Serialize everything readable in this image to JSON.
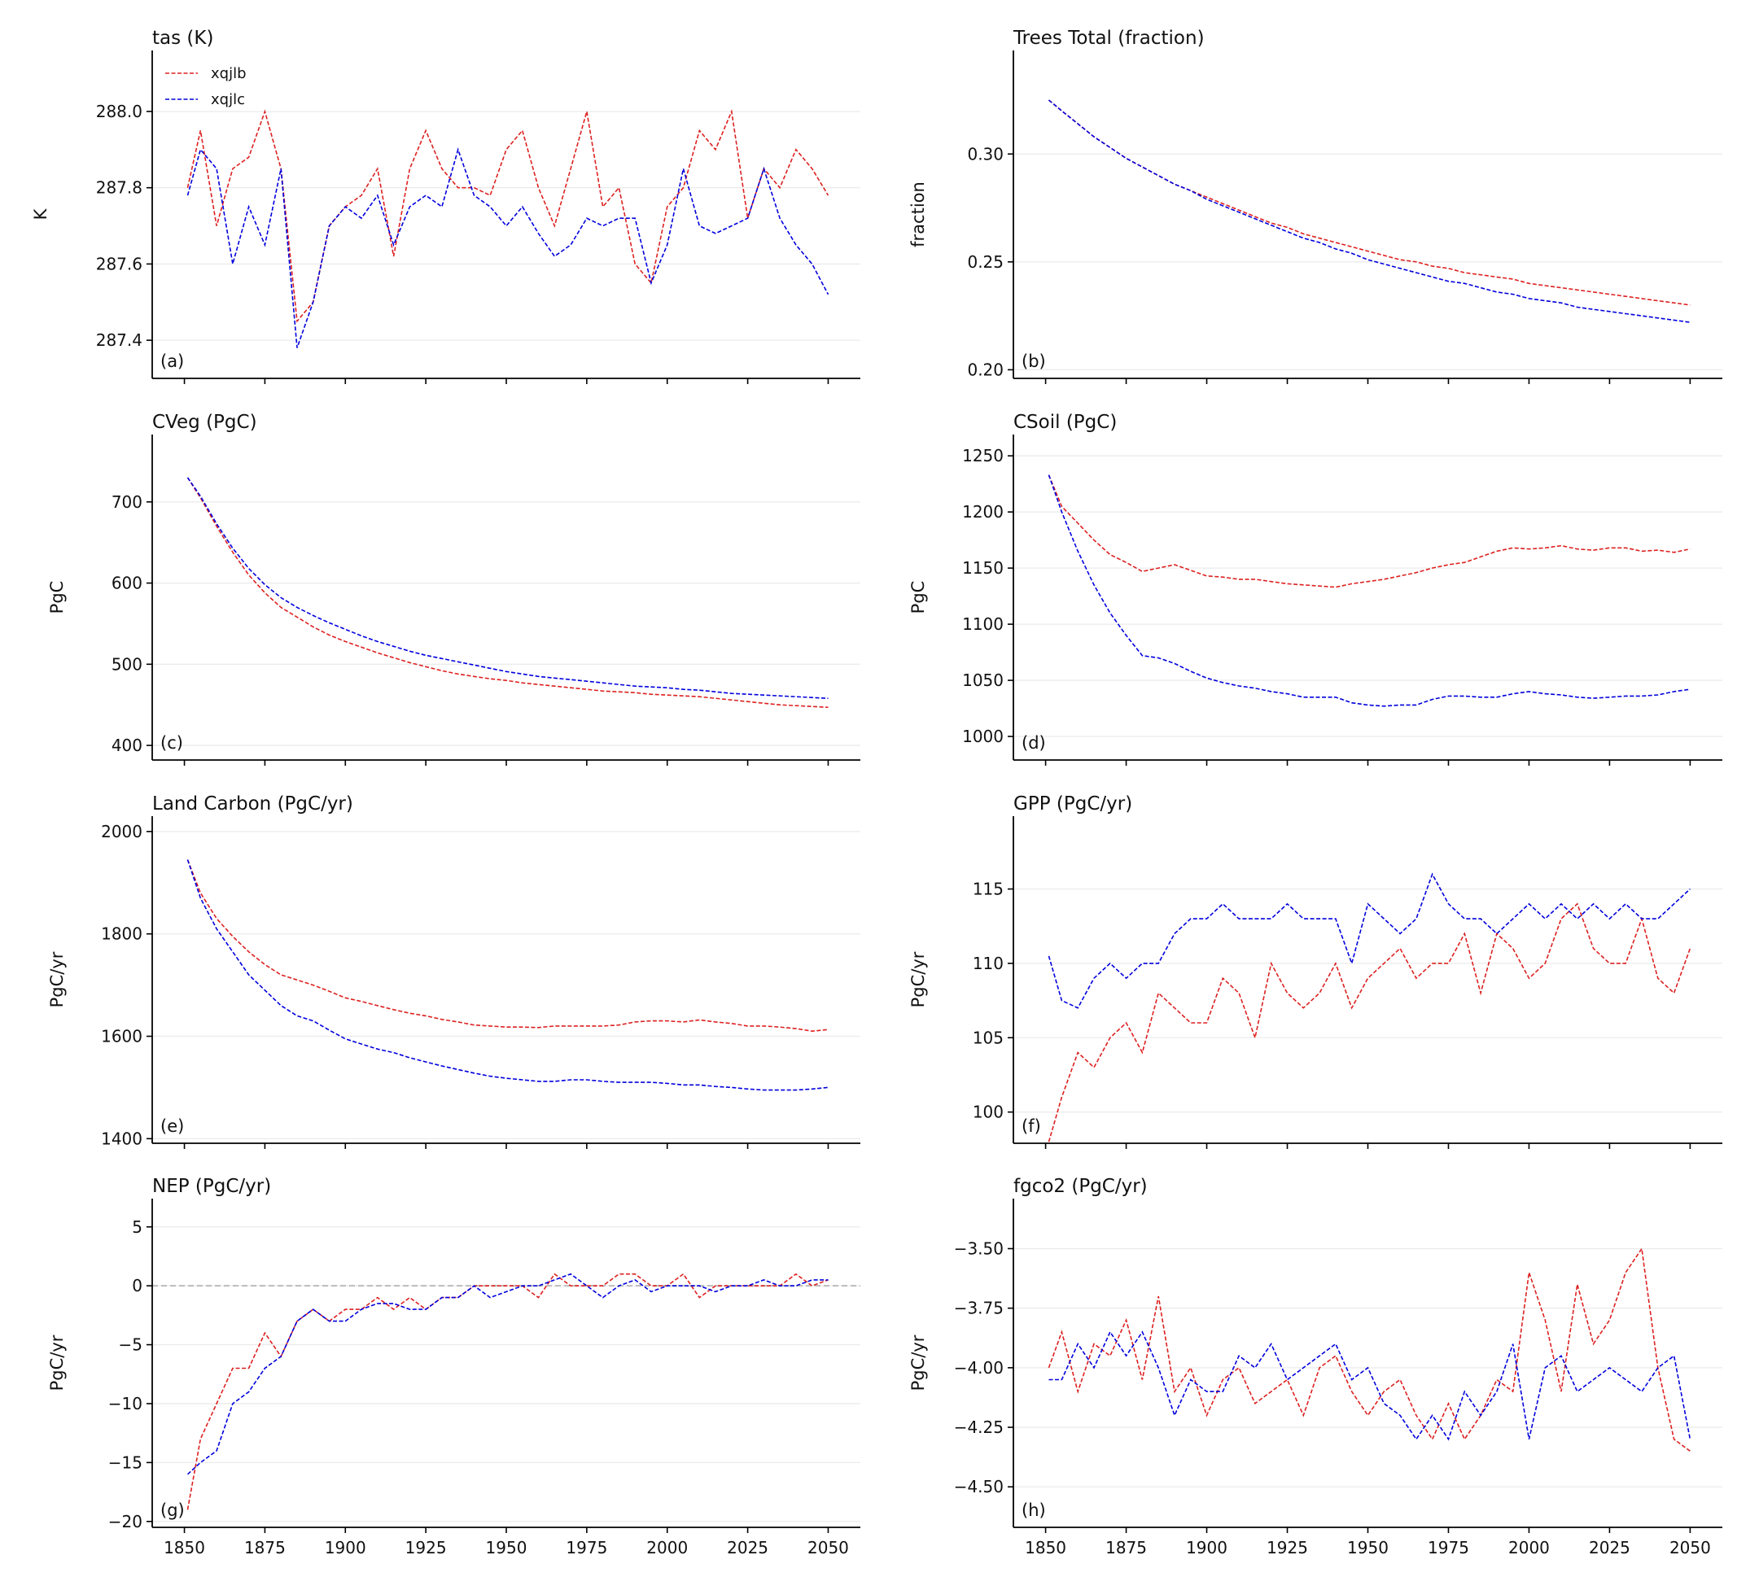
{
  "legend": {
    "placement": "upper-left",
    "panel": 0
  },
  "colors": {
    "xqjlb": "#dd2020",
    "xqjlc": "#0000dd",
    "grid": "#ebebeb",
    "zero_line": "#bbbbbb"
  },
  "x_years": [
    1851,
    1855,
    1860,
    1865,
    1870,
    1875,
    1880,
    1885,
    1890,
    1895,
    1900,
    1905,
    1910,
    1915,
    1920,
    1925,
    1930,
    1935,
    1940,
    1945,
    1950,
    1955,
    1960,
    1965,
    1970,
    1975,
    1980,
    1985,
    1990,
    1995,
    2000,
    2005,
    2010,
    2015,
    2020,
    2025,
    2030,
    2035,
    2040,
    2045,
    2050
  ],
  "x_ticks": [
    1850,
    1875,
    1900,
    1925,
    1950,
    1975,
    2000,
    2025,
    2050
  ],
  "x_tick_labels": [
    "1850",
    "1875",
    "1900",
    "1925",
    "1950",
    "1975",
    "2000",
    "2025",
    "2050"
  ],
  "xlim": [
    1840,
    2060
  ],
  "chart_data": [
    {
      "type": "line",
      "panel_label": "(a)",
      "title": "tas (K)",
      "ylabel": "K",
      "ylim": [
        287.3,
        288.16
      ],
      "yticks": [
        287.4,
        287.6,
        287.8,
        288.0
      ],
      "ytick_labels": [
        "287.4",
        "287.6",
        "287.8",
        "288.0"
      ],
      "grid": true,
      "series": [
        {
          "name": "xqjlb",
          "values": [
            287.8,
            287.95,
            287.7,
            287.85,
            287.88,
            288.0,
            287.85,
            287.45,
            287.5,
            287.7,
            287.75,
            287.78,
            287.85,
            287.62,
            287.85,
            287.95,
            287.85,
            287.8,
            287.8,
            287.78,
            287.9,
            287.95,
            287.8,
            287.7,
            287.85,
            288.0,
            287.75,
            287.8,
            287.6,
            287.55,
            287.75,
            287.8,
            287.95,
            287.9,
            288.0,
            287.72,
            287.85,
            287.8,
            287.9,
            287.85,
            287.78
          ]
        },
        {
          "name": "xqjlc",
          "values": [
            287.78,
            287.9,
            287.85,
            287.6,
            287.75,
            287.65,
            287.85,
            287.38,
            287.5,
            287.7,
            287.75,
            287.72,
            287.78,
            287.65,
            287.75,
            287.78,
            287.75,
            287.9,
            287.78,
            287.75,
            287.7,
            287.75,
            287.68,
            287.62,
            287.65,
            287.72,
            287.7,
            287.72,
            287.72,
            287.55,
            287.65,
            287.85,
            287.7,
            287.68,
            287.7,
            287.72,
            287.85,
            287.72,
            287.65,
            287.6,
            287.52
          ]
        }
      ]
    },
    {
      "type": "line",
      "panel_label": "(b)",
      "title": "Trees Total (fraction)",
      "ylabel": "fraction",
      "ylim": [
        0.196,
        0.348
      ],
      "yticks": [
        0.2,
        0.25,
        0.3
      ],
      "ytick_labels": [
        "0.20",
        "0.25",
        "0.30"
      ],
      "grid": true,
      "series": [
        {
          "name": "xqjlb",
          "values": [
            0.325,
            0.32,
            0.314,
            0.308,
            0.303,
            0.298,
            0.294,
            0.29,
            0.286,
            0.283,
            0.28,
            0.277,
            0.274,
            0.271,
            0.268,
            0.266,
            0.263,
            0.261,
            0.259,
            0.257,
            0.255,
            0.253,
            0.251,
            0.25,
            0.248,
            0.247,
            0.245,
            0.244,
            0.243,
            0.242,
            0.24,
            0.239,
            0.238,
            0.237,
            0.236,
            0.235,
            0.234,
            0.233,
            0.232,
            0.231,
            0.23
          ]
        },
        {
          "name": "xqjlc",
          "values": [
            0.325,
            0.32,
            0.314,
            0.308,
            0.303,
            0.298,
            0.294,
            0.29,
            0.286,
            0.283,
            0.279,
            0.276,
            0.273,
            0.27,
            0.267,
            0.264,
            0.261,
            0.259,
            0.256,
            0.254,
            0.251,
            0.249,
            0.247,
            0.245,
            0.243,
            0.241,
            0.24,
            0.238,
            0.236,
            0.235,
            0.233,
            0.232,
            0.231,
            0.229,
            0.228,
            0.227,
            0.226,
            0.225,
            0.224,
            0.223,
            0.222
          ]
        }
      ]
    },
    {
      "type": "line",
      "panel_label": "(c)",
      "title": "CVeg (PgC)",
      "ylabel": "PgC",
      "ylim": [
        382,
        783
      ],
      "yticks": [
        400,
        500,
        600,
        700
      ],
      "ytick_labels": [
        "400",
        "500",
        "600",
        "700"
      ],
      "grid": true,
      "series": [
        {
          "name": "xqjlb",
          "values": [
            730,
            705,
            670,
            638,
            610,
            588,
            570,
            558,
            546,
            536,
            528,
            521,
            514,
            508,
            502,
            497,
            492,
            488,
            485,
            482,
            480,
            477,
            475,
            473,
            471,
            469,
            467,
            466,
            465,
            463,
            462,
            461,
            460,
            458,
            456,
            454,
            452,
            450,
            449,
            448,
            447
          ]
        },
        {
          "name": "xqjlc",
          "values": [
            730,
            707,
            673,
            643,
            618,
            598,
            582,
            570,
            560,
            551,
            543,
            535,
            528,
            522,
            516,
            511,
            507,
            503,
            499,
            495,
            491,
            488,
            485,
            483,
            481,
            479,
            477,
            475,
            473,
            472,
            471,
            469,
            468,
            466,
            464,
            463,
            462,
            461,
            460,
            459,
            458
          ]
        }
      ]
    },
    {
      "type": "line",
      "panel_label": "(d)",
      "title": "CSoil (PgC)",
      "ylabel": "PgC",
      "ylim": [
        979,
        1269
      ],
      "yticks": [
        1000,
        1050,
        1100,
        1150,
        1200,
        1250
      ],
      "ytick_labels": [
        "1000",
        "1050",
        "1100",
        "1150",
        "1200",
        "1250"
      ],
      "grid": true,
      "series": [
        {
          "name": "xqjlb",
          "values": [
            1233,
            1205,
            1190,
            1175,
            1162,
            1155,
            1147,
            1150,
            1153,
            1148,
            1143,
            1142,
            1140,
            1140,
            1138,
            1136,
            1135,
            1134,
            1133,
            1136,
            1138,
            1140,
            1143,
            1146,
            1150,
            1153,
            1155,
            1160,
            1165,
            1168,
            1167,
            1168,
            1170,
            1167,
            1166,
            1168,
            1168,
            1165,
            1166,
            1164,
            1167
          ]
        },
        {
          "name": "xqjlc",
          "values": [
            1233,
            1200,
            1165,
            1135,
            1110,
            1090,
            1072,
            1070,
            1065,
            1058,
            1052,
            1048,
            1045,
            1043,
            1040,
            1038,
            1035,
            1035,
            1035,
            1030,
            1028,
            1027,
            1028,
            1028,
            1033,
            1036,
            1036,
            1035,
            1035,
            1038,
            1040,
            1038,
            1037,
            1035,
            1034,
            1035,
            1036,
            1036,
            1037,
            1040,
            1042
          ]
        }
      ]
    },
    {
      "type": "line",
      "panel_label": "(e)",
      "title": "Land Carbon (PgC/yr)",
      "ylabel": "PgC/yr",
      "ylim": [
        1391,
        2030
      ],
      "yticks": [
        1400,
        1600,
        1800,
        2000
      ],
      "ytick_labels": [
        "1400",
        "1600",
        "1800",
        "2000"
      ],
      "grid": true,
      "series": [
        {
          "name": "xqjlb",
          "values": [
            1945,
            1880,
            1830,
            1795,
            1765,
            1740,
            1720,
            1710,
            1700,
            1688,
            1675,
            1668,
            1660,
            1652,
            1645,
            1640,
            1633,
            1628,
            1622,
            1620,
            1618,
            1618,
            1617,
            1620,
            1620,
            1620,
            1620,
            1622,
            1628,
            1630,
            1630,
            1628,
            1632,
            1628,
            1625,
            1620,
            1620,
            1618,
            1615,
            1610,
            1613
          ]
        },
        {
          "name": "xqjlc",
          "values": [
            1945,
            1870,
            1810,
            1765,
            1720,
            1690,
            1660,
            1640,
            1630,
            1612,
            1595,
            1585,
            1575,
            1568,
            1558,
            1550,
            1542,
            1535,
            1528,
            1522,
            1518,
            1515,
            1512,
            1512,
            1515,
            1515,
            1512,
            1510,
            1510,
            1510,
            1508,
            1505,
            1505,
            1502,
            1500,
            1497,
            1495,
            1495,
            1495,
            1497,
            1500
          ]
        }
      ]
    },
    {
      "type": "line",
      "panel_label": "(f)",
      "title": "GPP (PgC/yr)",
      "ylabel": "PgC/yr",
      "ylim": [
        97.9,
        119.9
      ],
      "yticks": [
        100,
        105,
        110,
        115
      ],
      "ytick_labels": [
        "100",
        "105",
        "110",
        "115"
      ],
      "grid": true,
      "series": [
        {
          "name": "xqjlb",
          "values": [
            98,
            101,
            104,
            103,
            105,
            106,
            104,
            108,
            107,
            106,
            106,
            109,
            108,
            105,
            110,
            108,
            107,
            108,
            110,
            107,
            109,
            110,
            111,
            109,
            110,
            110,
            112,
            108,
            112,
            111,
            109,
            110,
            113,
            114,
            111,
            110,
            110,
            113,
            109,
            108,
            111
          ]
        },
        {
          "name": "xqjlc",
          "values": [
            110.5,
            107.5,
            107,
            109,
            110,
            109,
            110,
            110,
            112,
            113,
            113,
            114,
            113,
            113,
            113,
            114,
            113,
            113,
            113,
            110,
            114,
            113,
            112,
            113,
            116,
            114,
            113,
            113,
            112,
            113,
            114,
            113,
            114,
            113,
            114,
            113,
            114,
            113,
            113,
            114,
            115
          ]
        }
      ]
    },
    {
      "type": "line",
      "panel_label": "(g)",
      "title": "NEP (PgC/yr)",
      "ylabel": "PgC/yr",
      "ylim": [
        -20.5,
        7.4
      ],
      "yticks": [
        -20,
        -15,
        -10,
        -5,
        0,
        5
      ],
      "ytick_labels": [
        "−20",
        "−15",
        "−10",
        "−5",
        "0",
        "5"
      ],
      "grid": true,
      "zero_line": true,
      "series": [
        {
          "name": "xqjlb",
          "values": [
            -19,
            -13,
            -10,
            -7,
            -7,
            -4,
            -6,
            -3,
            -2,
            -3,
            -2,
            -2,
            -1,
            -2,
            -1,
            -2,
            -1,
            -1,
            0,
            0,
            0,
            0,
            -1,
            1,
            0,
            0,
            0,
            1,
            1,
            0,
            0,
            1,
            -1,
            0,
            0,
            0,
            0,
            0,
            1,
            0,
            0.5
          ]
        },
        {
          "name": "xqjlc",
          "values": [
            -16,
            -15,
            -14,
            -10,
            -9,
            -7,
            -6,
            -3,
            -2,
            -3,
            -3,
            -2,
            -1.5,
            -1.5,
            -2,
            -2,
            -1,
            -1,
            0,
            -1,
            -0.5,
            0,
            0,
            0.5,
            1,
            0,
            -1,
            0,
            0.5,
            -0.5,
            0,
            0,
            0,
            -0.5,
            0,
            0,
            0.5,
            0,
            0,
            0.5,
            0.5
          ]
        }
      ]
    },
    {
      "type": "line",
      "panel_label": "(h)",
      "title": "fgco2 (PgC/yr)",
      "ylabel": "PgC/yr",
      "ylim": [
        -4.67,
        -3.29
      ],
      "yticks": [
        -4.5,
        -4.25,
        -4.0,
        -3.75,
        -3.5
      ],
      "ytick_labels": [
        "−4.50",
        "−4.25",
        "−4.00",
        "−3.75",
        "−3.50"
      ],
      "grid": true,
      "series": [
        {
          "name": "xqjlb",
          "values": [
            -4.0,
            -3.85,
            -4.1,
            -3.9,
            -3.95,
            -3.8,
            -4.05,
            -3.7,
            -4.1,
            -4.0,
            -4.2,
            -4.05,
            -4.0,
            -4.15,
            -4.1,
            -4.05,
            -4.2,
            -4.0,
            -3.95,
            -4.1,
            -4.2,
            -4.1,
            -4.05,
            -4.2,
            -4.3,
            -4.15,
            -4.3,
            -4.2,
            -4.05,
            -4.1,
            -3.6,
            -3.8,
            -4.1,
            -3.65,
            -3.9,
            -3.8,
            -3.6,
            -3.5,
            -4.0,
            -4.3,
            -4.35
          ]
        },
        {
          "name": "xqjlc",
          "values": [
            -4.05,
            -4.05,
            -3.9,
            -4.0,
            -3.85,
            -3.95,
            -3.85,
            -4.0,
            -4.2,
            -4.05,
            -4.1,
            -4.1,
            -3.95,
            -4.0,
            -3.9,
            -4.05,
            -4.0,
            -3.95,
            -3.9,
            -4.05,
            -4.0,
            -4.15,
            -4.2,
            -4.3,
            -4.2,
            -4.3,
            -4.1,
            -4.2,
            -4.1,
            -3.9,
            -4.3,
            -4.0,
            -3.95,
            -4.1,
            -4.05,
            -4.0,
            -4.05,
            -4.1,
            -4.0,
            -3.95,
            -4.3
          ]
        }
      ]
    }
  ]
}
